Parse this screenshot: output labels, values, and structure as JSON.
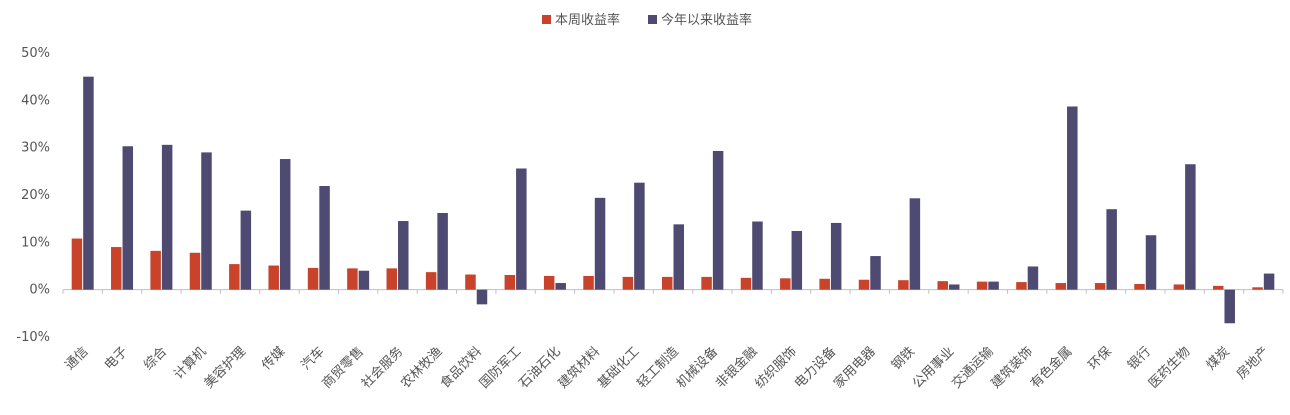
{
  "chart_data": {
    "type": "bar",
    "title": "",
    "xlabel": "",
    "ylabel": "",
    "ylim": [
      -0.1,
      0.5
    ],
    "yticks": [
      -0.1,
      0.0,
      0.1,
      0.2,
      0.3,
      0.4,
      0.5
    ],
    "ytick_labels": [
      "-10%",
      "0%",
      "10%",
      "20%",
      "30%",
      "40%",
      "50%"
    ],
    "legend_position": "top-center",
    "grid": false,
    "categories": [
      "通信",
      "电子",
      "综合",
      "计算机",
      "美容护理",
      "传媒",
      "汽车",
      "商贸零售",
      "社会服务",
      "农林牧渔",
      "食品饮料",
      "国防军工",
      "石油石化",
      "建筑材料",
      "基础化工",
      "轻工制造",
      "机械设备",
      "非银金融",
      "纺织服饰",
      "电力设备",
      "家用电器",
      "钢铁",
      "公用事业",
      "交通运输",
      "建筑装饰",
      "有色金属",
      "环保",
      "银行",
      "医药生物",
      "煤炭",
      "房地产"
    ],
    "series": [
      {
        "name": "本周收益率",
        "color": "#c8432a",
        "values": [
          0.108,
          0.09,
          0.082,
          0.078,
          0.054,
          0.051,
          0.046,
          0.045,
          0.045,
          0.037,
          0.032,
          0.031,
          0.029,
          0.029,
          0.027,
          0.027,
          0.027,
          0.025,
          0.024,
          0.023,
          0.021,
          0.02,
          0.018,
          0.017,
          0.016,
          0.014,
          0.014,
          0.012,
          0.011,
          0.008,
          0.005
        ]
      },
      {
        "name": "今年以来收益率",
        "color": "#4e4a71",
        "values": [
          0.45,
          0.303,
          0.306,
          0.29,
          0.167,
          0.276,
          0.219,
          0.04,
          0.145,
          0.162,
          -0.031,
          0.256,
          0.014,
          0.194,
          0.226,
          0.138,
          0.293,
          0.144,
          0.124,
          0.141,
          0.071,
          0.193,
          0.011,
          0.017,
          0.049,
          0.387,
          0.17,
          0.115,
          0.265,
          -0.071,
          0.034
        ]
      }
    ]
  }
}
